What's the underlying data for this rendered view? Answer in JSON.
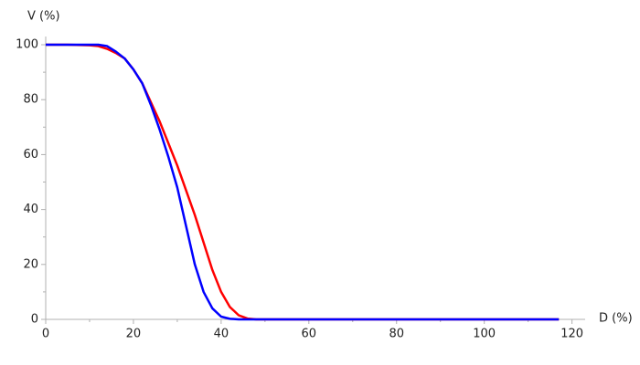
{
  "chart_data": {
    "type": "line",
    "xlabel": "D (%)",
    "ylabel": "V (%)",
    "x": [
      0,
      5,
      10,
      12,
      14,
      16,
      18,
      20,
      22,
      24,
      26,
      28,
      30,
      32,
      34,
      36,
      38,
      40,
      42,
      44,
      46,
      48,
      50,
      60,
      80,
      100,
      117
    ],
    "series": [
      {
        "color": "#ff0000",
        "values": [
          100,
          100,
          99.8,
          99.5,
          98.5,
          97,
          95,
          91,
          86,
          79,
          72,
          64,
          56,
          47,
          38,
          28,
          18,
          10,
          4.5,
          1.5,
          0.3,
          0,
          0,
          0,
          0,
          0,
          0
        ]
      },
      {
        "color": "#0000ff",
        "values": [
          100,
          100,
          100,
          100,
          99.5,
          97.5,
          95,
          91,
          86,
          78,
          69,
          59,
          48,
          34,
          20,
          10,
          4,
          1,
          0.2,
          0,
          0,
          0,
          0,
          0,
          0,
          0,
          0
        ]
      }
    ],
    "xlim": [
      0,
      123
    ],
    "ylim": [
      0,
      103
    ],
    "xticks": [
      0,
      20,
      40,
      60,
      80,
      100,
      120
    ],
    "yticks": [
      0,
      20,
      40,
      60,
      80,
      100
    ],
    "xminorticks": [
      10,
      30,
      50,
      70,
      90,
      110
    ],
    "yminorticks": [
      10,
      30,
      50,
      70,
      90
    ],
    "grid": false
  }
}
